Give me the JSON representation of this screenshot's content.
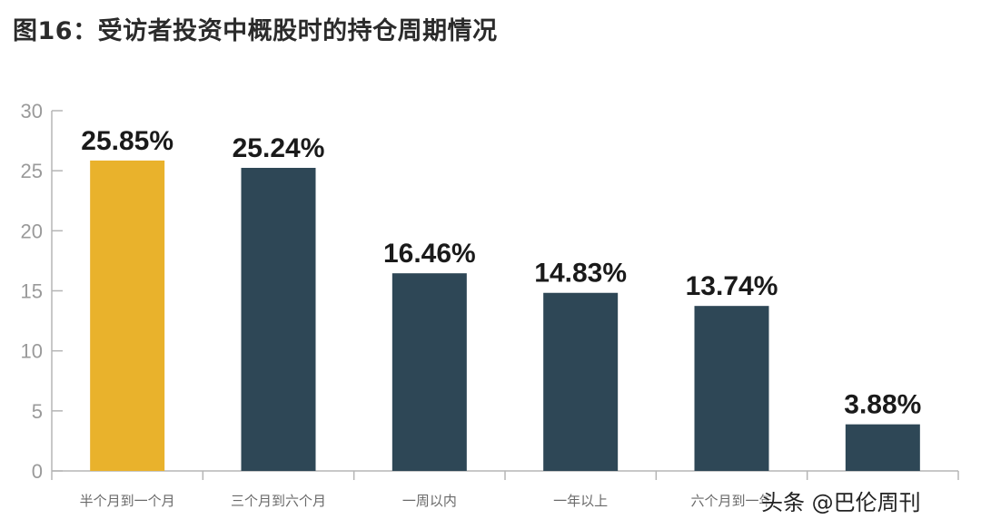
{
  "title": "图16：受访者投资中概股时的持仓周期情况",
  "watermark": "头条 @巴伦周刊",
  "chart_data": {
    "type": "bar",
    "categories": [
      "半个月到一个月",
      "三个月到六个月",
      "一周以内",
      "一年以上",
      "六个月到一年",
      ""
    ],
    "values": [
      25.85,
      25.24,
      16.46,
      14.83,
      13.74,
      3.88
    ],
    "value_labels": [
      "25.85%",
      "25.24%",
      "16.46%",
      "14.83%",
      "13.74%",
      "3.88%"
    ],
    "ylim": [
      0,
      30
    ],
    "yticks": [
      0,
      5,
      10,
      15,
      20,
      25,
      30
    ],
    "grid": false,
    "legend": "none",
    "colors": {
      "highlight": "#E9B22C",
      "default": "#2E4756",
      "axis": "#b5b5b5"
    },
    "highlight_index": 0
  }
}
